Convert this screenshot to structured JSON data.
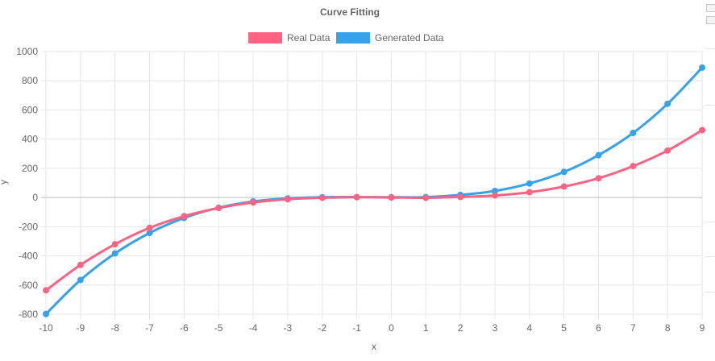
{
  "chart_data": {
    "type": "line",
    "title": "Curve Fitting",
    "xlabel": "x",
    "ylabel": "y",
    "x": [
      -10,
      -9,
      -8,
      -7,
      -6,
      -5,
      -4,
      -3,
      -2,
      -1,
      0,
      1,
      2,
      3,
      4,
      5,
      6,
      7,
      8,
      9
    ],
    "ylim": [
      -800,
      1000
    ],
    "yticks": [
      1000,
      800,
      600,
      400,
      200,
      0,
      -200,
      -400,
      -600,
      -800
    ],
    "grid": true,
    "legend_position": "top",
    "series": [
      {
        "name": "Real Data",
        "color": "#ff6384",
        "values": [
          -636,
          -462,
          -320,
          -208,
          -128,
          -72,
          -34,
          -12,
          -2,
          2,
          0,
          -2,
          4,
          14,
          36,
          75,
          132,
          215,
          322,
          462
        ]
      },
      {
        "name": "Generated Data",
        "color": "#36a2eb",
        "values": [
          -798,
          -565,
          -383,
          -243,
          -140,
          -70,
          -27,
          -6,
          2,
          3,
          2,
          3,
          18,
          45,
          96,
          175,
          290,
          442,
          642,
          890
        ]
      }
    ]
  }
}
